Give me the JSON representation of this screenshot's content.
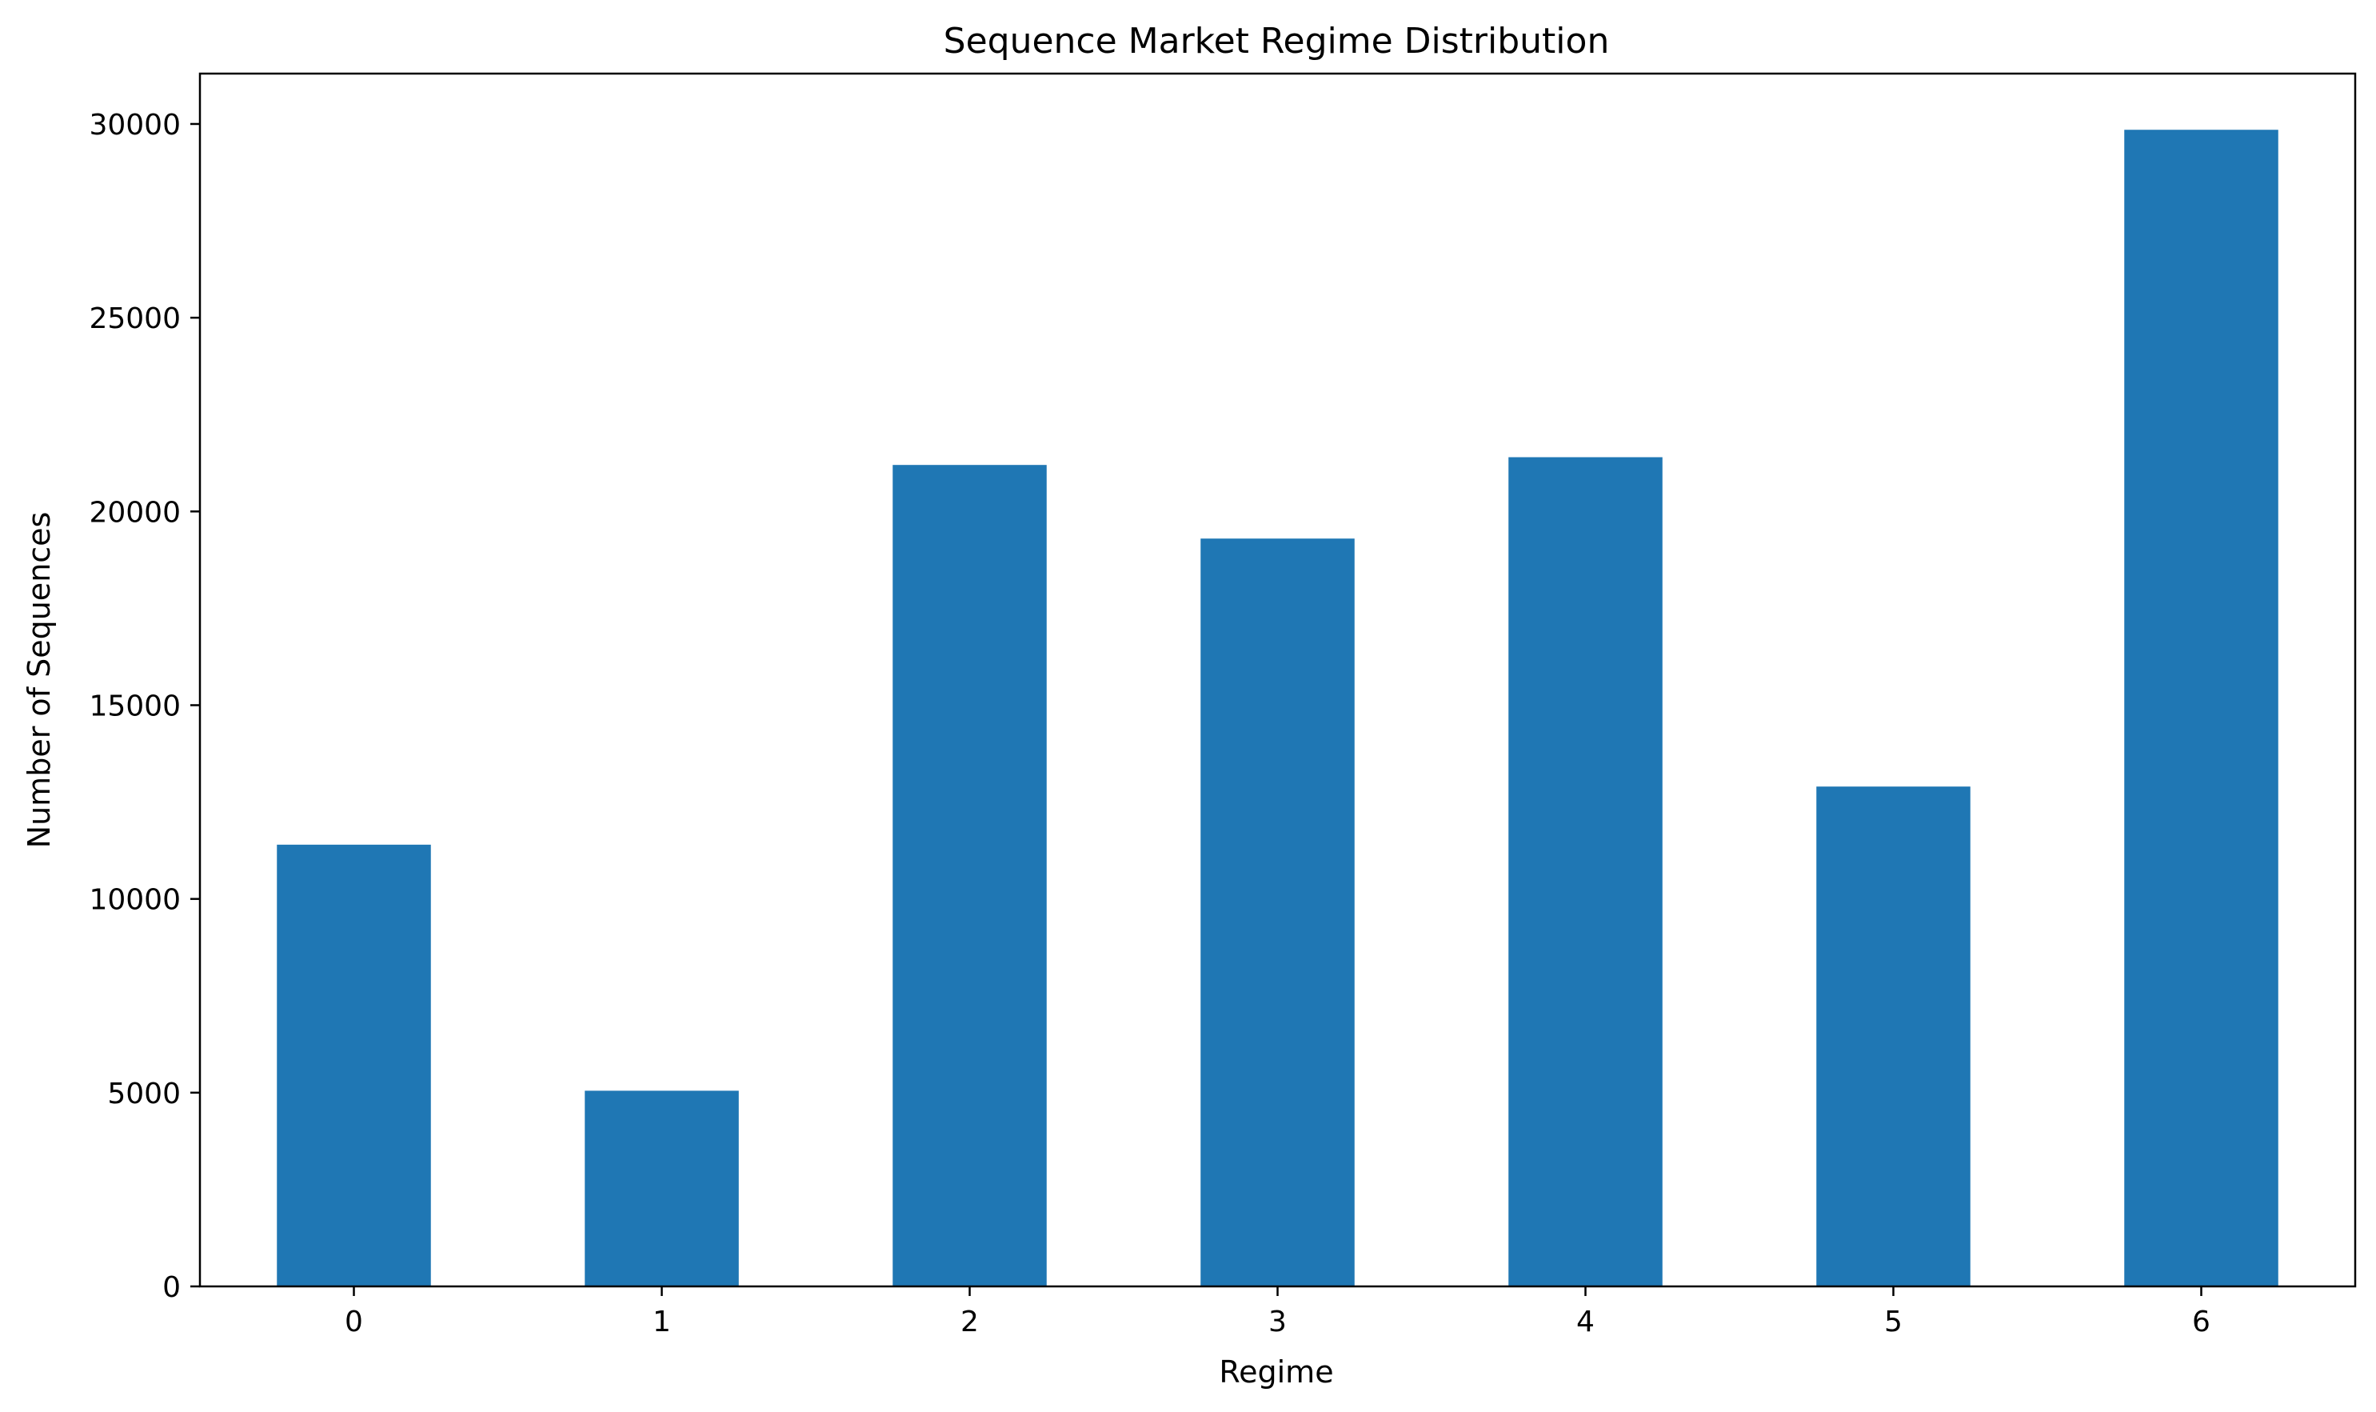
{
  "colors": {
    "bar": "#1f77b4",
    "axis": "#000000",
    "background": "#ffffff"
  },
  "chart_data": {
    "type": "bar",
    "title": "Sequence Market Regime Distribution",
    "xlabel": "Regime",
    "ylabel": "Number of Sequences",
    "categories": [
      "0",
      "1",
      "2",
      "3",
      "4",
      "5",
      "6"
    ],
    "values": [
      11400,
      5050,
      21200,
      19300,
      21400,
      12900,
      29850
    ],
    "ylim": [
      0,
      31300
    ],
    "yticks": [
      0,
      5000,
      10000,
      15000,
      20000,
      25000,
      30000
    ],
    "grid": false,
    "legend": "none"
  }
}
